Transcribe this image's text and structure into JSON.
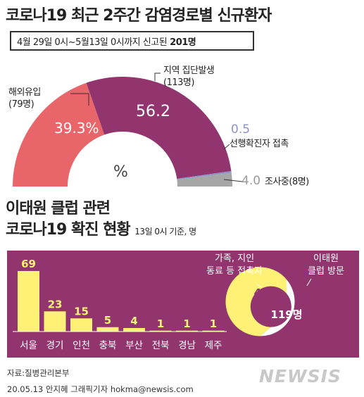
{
  "title": "코로나19 최근 2주간 감염경로별 신규환자",
  "subtitle": {
    "period": "4월 29일 0시~5월13일 0시까지 신고된",
    "total": "201명"
  },
  "chart_data": [
    {
      "type": "pie",
      "variant": "semicircle-donut",
      "unit": "%",
      "slices": [
        {
          "label": "해외유입",
          "count": "(79명)",
          "value": 39.3,
          "display": "39.3%",
          "color": "#e8656a"
        },
        {
          "label": "지역 집단발생",
          "count": "(113명)",
          "value": 56.2,
          "display": "56.2",
          "color": "#92346e"
        },
        {
          "label": "선행확진자 접촉",
          "count": "",
          "value": 0.5,
          "display": "0.5",
          "color": "#8b93c8"
        },
        {
          "label": "조사중(8명)",
          "count": "",
          "value": 4.0,
          "display": "4.0",
          "color": "#a6a6a6"
        }
      ]
    },
    {
      "type": "bar",
      "title": "이태원 클럽 관련",
      "subtitle": "코로나19 확진 현황",
      "note": "13일 0시 기준, 명",
      "categories": [
        "서울",
        "경기",
        "인천",
        "충북",
        "부산",
        "전북",
        "경남",
        "제주"
      ],
      "values": [
        69,
        23,
        15,
        5,
        4,
        1,
        1,
        1
      ],
      "ylim": [
        0,
        69
      ],
      "color": "#fff176"
    },
    {
      "type": "pie",
      "variant": "donut",
      "total": "119명",
      "slices": [
        {
          "label": "가족, 지인\n동료 등 접촉자",
          "value": 43,
          "color": "#ffffff"
        },
        {
          "label": "이태원\n클럽 방문",
          "value": 76,
          "color": "#fff176"
        }
      ]
    }
  ],
  "source": "자료:질병관리본부",
  "credit": "20.05.13 안지혜 그래픽기자 hokma@newsis.com",
  "logo_text": "NEWSIS"
}
